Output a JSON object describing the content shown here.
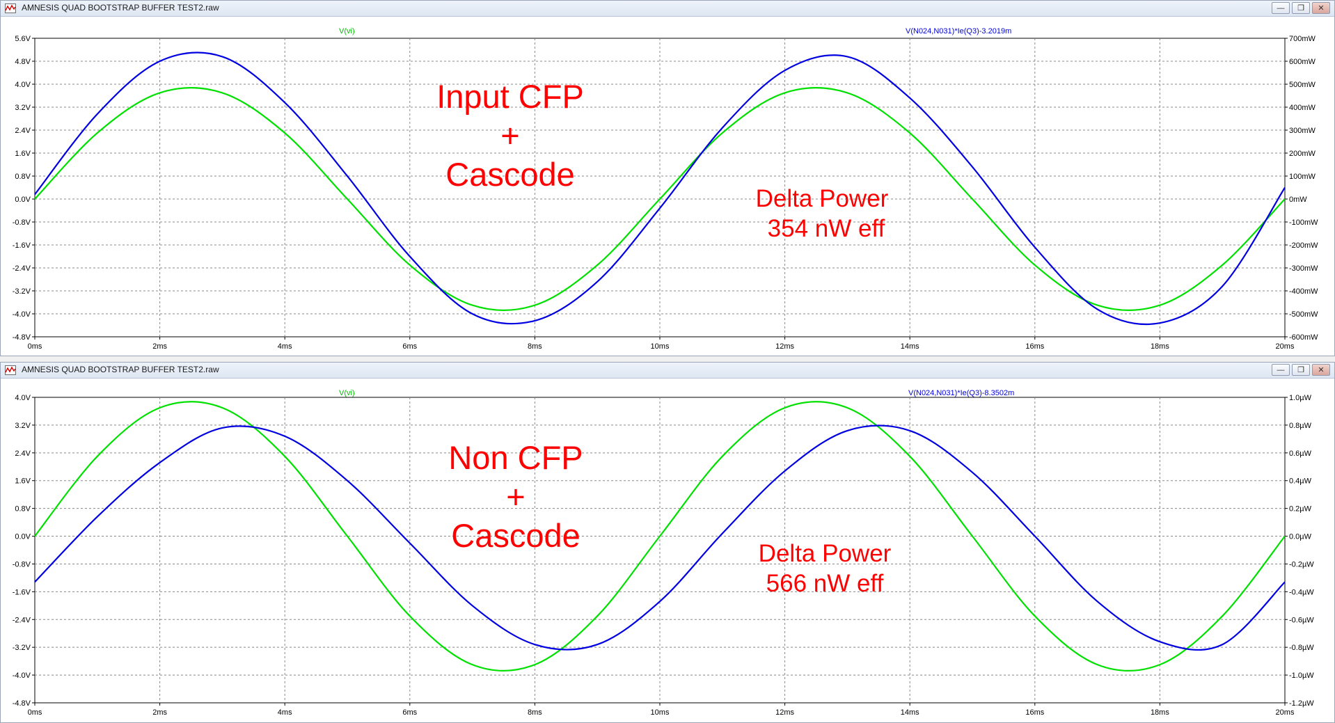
{
  "windows": [
    {
      "title": "AMNESIS QUAD BOOTSTRAP BUFFER TEST2.raw",
      "controls": {
        "minimize": "—",
        "restore": "❐",
        "close": "✕"
      },
      "trace_label_left": "V(vi)",
      "trace_label_right": "V(N024,N031)*Ie(Q3)-3.2019m",
      "annotation_main": [
        "Input CFP",
        "+",
        "Cascode"
      ],
      "annotation_power": [
        "Delta Power",
        "354 nW eff"
      ],
      "colors": {
        "left_trace": "#00e000",
        "right_trace": "#0000e0",
        "annotation": "#ff0000",
        "grid": "#888888"
      }
    },
    {
      "title": "AMNESIS QUAD BOOTSTRAP BUFFER TEST2.raw",
      "controls": {
        "minimize": "—",
        "restore": "❐",
        "close": "✕"
      },
      "trace_label_left": "V(vi)",
      "trace_label_right": "V(N024,N031)*Ie(Q3)-8.3502m",
      "annotation_main": [
        "Non CFP",
        "+",
        "Cascode"
      ],
      "annotation_power": [
        "Delta Power",
        "566 nW eff"
      ],
      "colors": {
        "left_trace": "#00e000",
        "right_trace": "#0000e0",
        "annotation": "#ff0000",
        "grid": "#888888"
      }
    }
  ],
  "chart_data": [
    {
      "type": "line",
      "xlabel": "",
      "x_ticks": [
        "0ms",
        "2ms",
        "4ms",
        "6ms",
        "8ms",
        "10ms",
        "12ms",
        "14ms",
        "16ms",
        "18ms",
        "20ms"
      ],
      "xlim_ms": [
        0,
        20
      ],
      "y_left_ticks": [
        "5.6V",
        "4.8V",
        "4.0V",
        "3.2V",
        "2.4V",
        "1.6V",
        "0.8V",
        "0.0V",
        "-0.8V",
        "-1.6V",
        "-2.4V",
        "-3.2V",
        "-4.0V",
        "-4.8V"
      ],
      "ylim_left": [
        -4.8,
        5.6
      ],
      "y_right_ticks": [
        "700mW",
        "600mW",
        "500mW",
        "400mW",
        "300mW",
        "200mW",
        "100mW",
        "0mW",
        "-100mW",
        "-200mW",
        "-300mW",
        "-400mW",
        "-500mW",
        "-600mW"
      ],
      "ylim_right": [
        -600,
        700
      ],
      "grid": true,
      "series": [
        {
          "name": "V(vi)",
          "axis": "left",
          "x_ms": [
            0,
            1,
            2,
            3,
            4,
            5,
            6,
            7,
            8,
            9,
            10,
            11,
            12,
            13,
            14,
            15,
            16,
            17,
            18,
            19,
            20
          ],
          "values": [
            0.0,
            2.3,
            3.7,
            3.7,
            2.3,
            0.0,
            -2.3,
            -3.7,
            -3.7,
            -2.3,
            0.0,
            2.3,
            3.7,
            3.7,
            2.3,
            0.0,
            -2.3,
            -3.7,
            -3.7,
            -2.3,
            0.0
          ]
        },
        {
          "name": "V(N024,N031)*Ie(Q3)-3.2019m",
          "axis": "right",
          "x_ms": [
            0,
            1,
            2,
            3,
            4,
            5,
            6,
            7,
            8,
            9,
            10,
            11,
            12,
            13,
            14,
            15,
            16,
            17,
            18,
            19,
            20
          ],
          "values": [
            20,
            370,
            600,
            620,
            420,
            100,
            -250,
            -500,
            -530,
            -360,
            -40,
            310,
            560,
            620,
            440,
            140,
            -210,
            -480,
            -540,
            -380,
            50
          ]
        }
      ]
    },
    {
      "type": "line",
      "xlabel": "",
      "x_ticks": [
        "0ms",
        "2ms",
        "4ms",
        "6ms",
        "8ms",
        "10ms",
        "12ms",
        "14ms",
        "16ms",
        "18ms",
        "20ms"
      ],
      "xlim_ms": [
        0,
        20
      ],
      "y_left_ticks": [
        "4.0V",
        "3.2V",
        "2.4V",
        "1.6V",
        "0.8V",
        "0.0V",
        "-0.8V",
        "-1.6V",
        "-2.4V",
        "-3.2V",
        "-4.0V",
        "-4.8V"
      ],
      "ylim_left": [
        -4.8,
        4.0
      ],
      "y_right_ticks": [
        "1.0µW",
        "0.8µW",
        "0.6µW",
        "0.4µW",
        "0.2µW",
        "0.0µW",
        "-0.2µW",
        "-0.4µW",
        "-0.6µW",
        "-0.8µW",
        "-1.0µW",
        "-1.2µW"
      ],
      "ylim_right": [
        -1.2,
        1.0
      ],
      "grid": true,
      "series": [
        {
          "name": "V(vi)",
          "axis": "left",
          "x_ms": [
            0,
            1,
            2,
            3,
            4,
            5,
            6,
            7,
            8,
            9,
            10,
            11,
            12,
            13,
            14,
            15,
            16,
            17,
            18,
            19,
            20
          ],
          "values": [
            0.0,
            2.3,
            3.7,
            3.7,
            2.3,
            0.0,
            -2.3,
            -3.7,
            -3.7,
            -2.3,
            0.0,
            2.3,
            3.7,
            3.7,
            2.3,
            0.0,
            -2.3,
            -3.7,
            -3.7,
            -2.3,
            0.0
          ]
        },
        {
          "name": "V(N024,N031)*Ie(Q3)-8.3502m",
          "axis": "right",
          "x_ms": [
            0,
            1,
            2,
            3,
            4,
            5,
            6,
            7,
            8,
            9,
            10,
            11,
            12,
            13,
            14,
            15,
            16,
            17,
            18,
            19,
            20
          ],
          "values": [
            -0.33,
            0.14,
            0.53,
            0.78,
            0.72,
            0.4,
            -0.05,
            -0.5,
            -0.78,
            -0.78,
            -0.47,
            0.02,
            0.47,
            0.76,
            0.76,
            0.46,
            0.0,
            -0.47,
            -0.76,
            -0.78,
            -0.33
          ]
        }
      ]
    }
  ]
}
